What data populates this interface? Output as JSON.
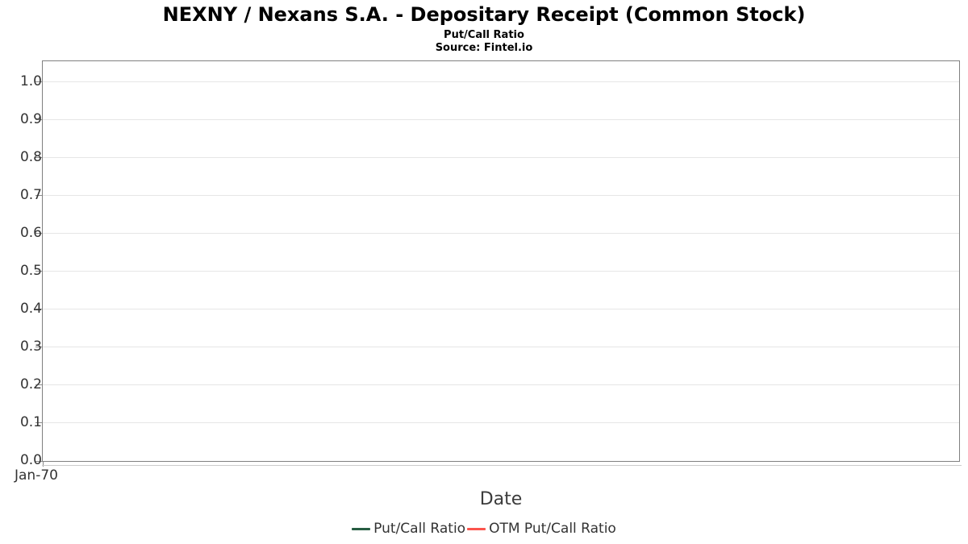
{
  "header": {
    "title": "NEXNY / Nexans S.A. - Depositary Receipt (Common Stock)",
    "subtitle": "Put/Call Ratio",
    "source": "Source: Fintel.io"
  },
  "chart_data": {
    "type": "line",
    "title": "NEXNY / Nexans S.A. - Depositary Receipt (Common Stock)",
    "subtitle": "Put/Call Ratio",
    "source_note": "Source: Fintel.io",
    "xlabel": "Date",
    "ylabel": "",
    "ylim": [
      0,
      1.055
    ],
    "yticks": [
      0.0,
      0.1,
      0.2,
      0.3,
      0.4,
      0.5,
      0.6,
      0.7,
      0.8,
      0.9,
      1.0
    ],
    "ytick_format_decimals": 1,
    "xtick_labels": [
      "Jan-70"
    ],
    "grid": "horizontal",
    "plot_background": "#ffffff",
    "gridline_color": "#e6e6e6",
    "plot_border_color": "#808080",
    "axis_line_color": "#cccccc",
    "legend_position": "bottom-center",
    "series": [
      {
        "name": "Put/Call Ratio",
        "color": "#275d42",
        "x": [],
        "values": []
      },
      {
        "name": "OTM Put/Call Ratio",
        "color": "#fb544c",
        "x": [],
        "values": []
      }
    ]
  },
  "legend": {
    "items": [
      {
        "label": "Put/Call Ratio",
        "color": "#275d42"
      },
      {
        "label": "OTM Put/Call Ratio",
        "color": "#fb544c"
      }
    ]
  },
  "x_axis": {
    "title": "Date",
    "first_tick_label": "Jan-70"
  }
}
